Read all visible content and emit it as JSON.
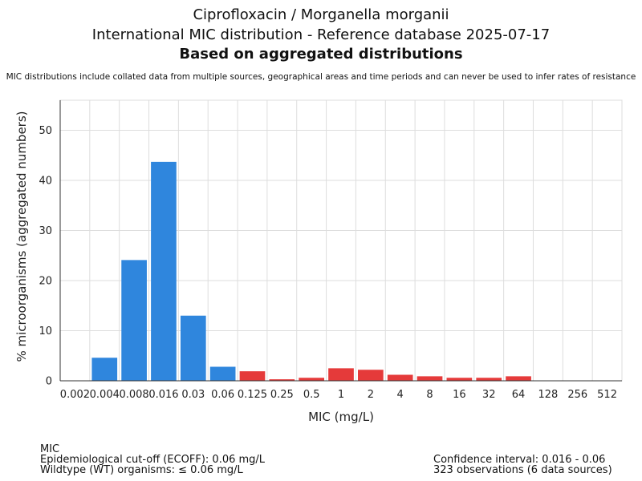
{
  "header": {
    "title_line1": "Ciprofloxacin / Morganella morganii",
    "title_line2": "International MIC distribution - Reference database 2025-07-17",
    "title_line3": "Based on aggregated distributions",
    "subtitle": "MIC distributions include collated data from multiple sources, geographical areas and time periods and can never be used to infer rates of resistance"
  },
  "chart_data": {
    "type": "bar",
    "categories": [
      "0.002",
      "0.004",
      "0.008",
      "0.016",
      "0.03",
      "0.06",
      "0.125",
      "0.25",
      "0.5",
      "1",
      "2",
      "4",
      "8",
      "16",
      "32",
      "64",
      "128",
      "256",
      "512"
    ],
    "values": [
      0,
      4.6,
      24.1,
      43.7,
      13.0,
      2.8,
      1.9,
      0.3,
      0.6,
      2.5,
      2.2,
      1.2,
      0.9,
      0.6,
      0.6,
      0.9,
      0,
      0,
      0
    ],
    "ecoff_category": "0.06",
    "colors": {
      "wildtype": "#2f86dd",
      "non_wildtype": "#e53a3a",
      "grid": "#dddddd",
      "axis": "#333333"
    },
    "xlabel": "MIC (mg/L)",
    "ylabel": "% microorganisms (aggregated numbers)",
    "ylim": [
      0,
      56
    ],
    "yticks": [
      0,
      10,
      20,
      30,
      40,
      50
    ]
  },
  "footer": {
    "left": {
      "line1": "MIC",
      "line2": "Epidemiological cut-off (ECOFF): 0.06 mg/L",
      "line3": "Wildtype (WT) organisms: ≤ 0.06 mg/L"
    },
    "right": {
      "line1": "Confidence interval: 0.016 - 0.06",
      "line2": "323 observations (6 data sources)"
    }
  }
}
